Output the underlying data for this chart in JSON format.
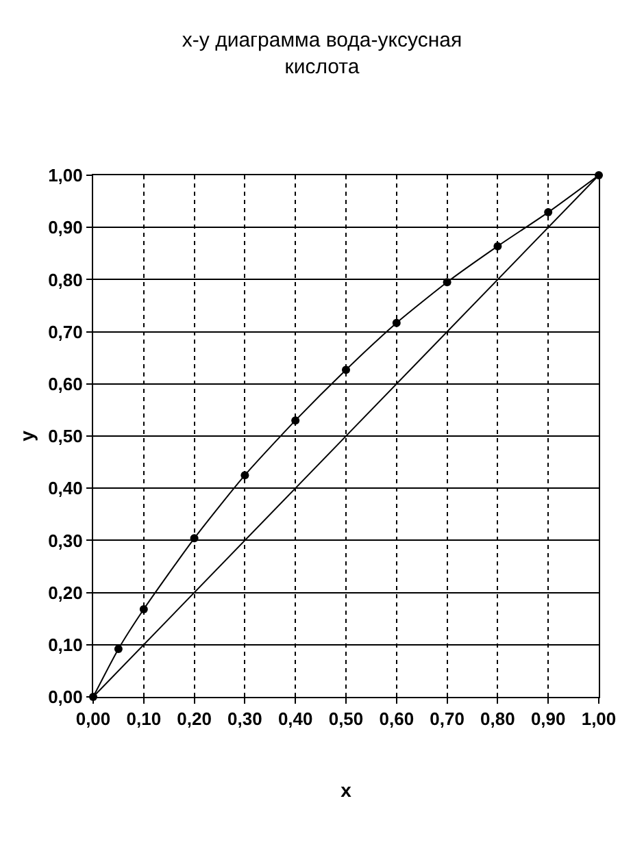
{
  "chart_data": {
    "type": "line",
    "title": "x-y диаграмма вода-уксусная кислота",
    "xlabel": "x",
    "ylabel": "y",
    "series": [
      {
        "type": "line",
        "color": "#000000",
        "marker": "circle",
        "line_style": "solid",
        "x": [
          0,
          0.05,
          0.1,
          0.2,
          0.3,
          0.4,
          0.5,
          0.6,
          0.7,
          0.8,
          0.9,
          1
        ],
        "values": [
          0,
          0.092,
          0.168,
          0.304,
          0.425,
          0.53,
          0.627,
          0.717,
          0.795,
          0.864,
          0.929,
          1
        ]
      },
      {
        "type": "line",
        "color": "#000000",
        "marker": "none",
        "line_style": "solid",
        "x": [
          0,
          1
        ],
        "values": [
          0,
          1
        ]
      }
    ],
    "xlim": [
      0,
      1
    ],
    "ylim": [
      0,
      1
    ],
    "xticks": [
      {
        "value": 0,
        "label": "0,00"
      },
      {
        "value": 0.1,
        "label": "0,10"
      },
      {
        "value": 0.2,
        "label": "0,20"
      },
      {
        "value": 0.3,
        "label": "0,30"
      },
      {
        "value": 0.4,
        "label": "0,40"
      },
      {
        "value": 0.5,
        "label": "0,50"
      },
      {
        "value": 0.6,
        "label": "0,60"
      },
      {
        "value": 0.7,
        "label": "0,70"
      },
      {
        "value": 0.8,
        "label": "0,80"
      },
      {
        "value": 0.9,
        "label": "0,90"
      },
      {
        "value": 1,
        "label": "1,00"
      }
    ],
    "yticks": [
      {
        "value": 0,
        "label": "0,00"
      },
      {
        "value": 0.1,
        "label": "0,10"
      },
      {
        "value": 0.2,
        "label": "0,20"
      },
      {
        "value": 0.3,
        "label": "0,30"
      },
      {
        "value": 0.4,
        "label": "0,40"
      },
      {
        "value": 0.5,
        "label": "0,50"
      },
      {
        "value": 0.6,
        "label": "0,60"
      },
      {
        "value": 0.7,
        "label": "0,70"
      },
      {
        "value": 0.8,
        "label": "0,80"
      },
      {
        "value": 0.9,
        "label": "0,90"
      },
      {
        "value": 1,
        "label": "1,00"
      }
    ],
    "grid": true
  }
}
